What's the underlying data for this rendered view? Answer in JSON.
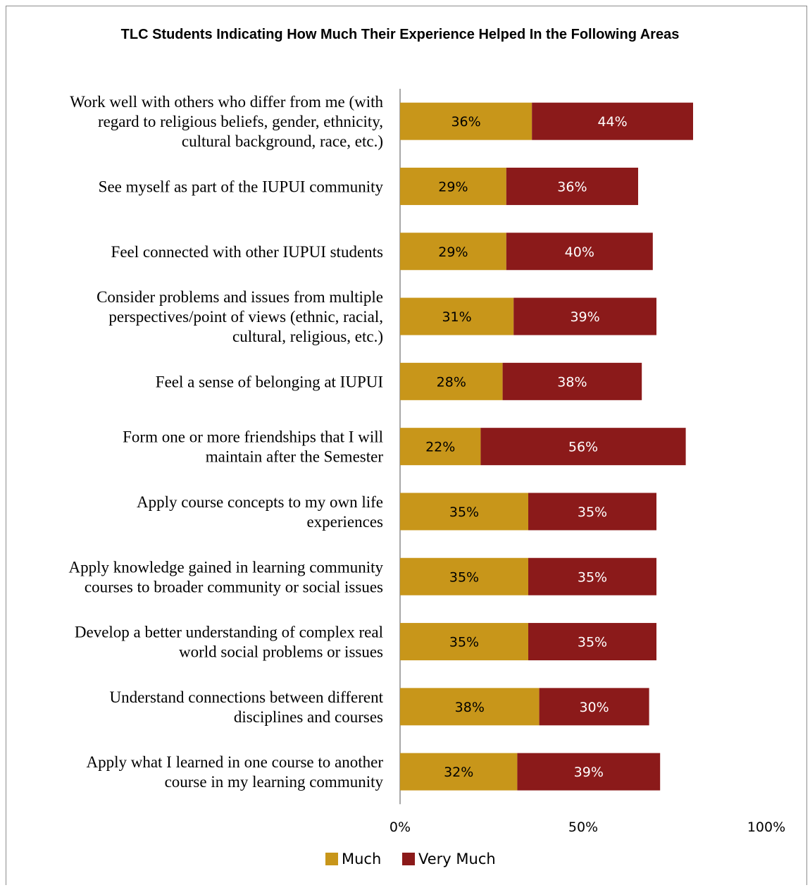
{
  "chart_data": {
    "type": "bar",
    "orientation": "horizontal",
    "stacked": true,
    "title": "TLC Students Indicating How Much Their Experience Helped In the Following Areas",
    "categories": [
      "Work well with others who differ from me (with regard to religious beliefs, gender, ethnicity, cultural background, race, etc.)",
      "See myself as part of the IUPUI community",
      "Feel connected with other IUPUI students",
      "Consider problems and issues from multiple perspectives/point of views (ethnic, racial, cultural, religious, etc.)",
      "Feel a sense of belonging at IUPUI",
      "Form one or more friendships that I will maintain after the Semester",
      "Apply course concepts to my own life experiences",
      "Apply knowledge gained in learning community courses to broader community or social issues",
      "Develop a better understanding of complex real world social problems or issues",
      "Understand connections between different disciplines and courses",
      "Apply what I learned in one course to another course in my learning community"
    ],
    "category_lines": [
      [
        "Work well with others who differ from me (with",
        "regard to religious beliefs, gender, ethnicity,",
        "cultural background, race, etc.)"
      ],
      [
        "See myself as part of the IUPUI community"
      ],
      [
        "Feel connected with other IUPUI students"
      ],
      [
        "Consider problems and issues from multiple",
        "perspectives/point of views (ethnic, racial,",
        "cultural, religious, etc.)"
      ],
      [
        "Feel a sense of belonging at IUPUI"
      ],
      [
        "Form one or more friendships that I will",
        "maintain after the Semester"
      ],
      [
        "Apply course concepts to my own life",
        "experiences"
      ],
      [
        "Apply knowledge gained in learning community",
        "courses to broader community or social issues"
      ],
      [
        "Develop a better understanding of complex real",
        "world social problems or issues"
      ],
      [
        "Understand connections between different",
        "disciplines and courses"
      ],
      [
        "Apply what I learned in one course to another",
        "course in my learning community"
      ]
    ],
    "series": [
      {
        "name": "Much",
        "color": "#C8961A",
        "values": [
          36,
          29,
          29,
          31,
          28,
          22,
          35,
          35,
          35,
          38,
          32
        ],
        "labels": [
          "36%",
          "29%",
          "29%",
          "31%",
          "28%",
          "22%",
          "35%",
          "35%",
          "35%",
          "38%",
          "32%"
        ]
      },
      {
        "name": "Very Much",
        "color": "#8B1A1A",
        "values": [
          44,
          36,
          40,
          39,
          38,
          56,
          35,
          35,
          35,
          30,
          39
        ],
        "labels": [
          "44%",
          "36%",
          "40%",
          "39%",
          "38%",
          "56%",
          "35%",
          "35%",
          "35%",
          "30%",
          "39%"
        ]
      }
    ],
    "xlim": [
      0,
      100
    ],
    "x_ticks": [
      0,
      50,
      100
    ],
    "x_tick_labels": [
      "0%",
      "50%",
      "100%"
    ],
    "grid": false,
    "legend_position": "bottom"
  }
}
